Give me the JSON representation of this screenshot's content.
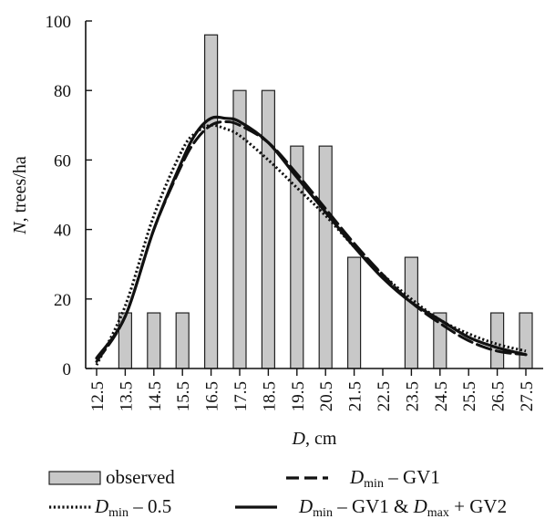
{
  "chart_data": {
    "type": "bar",
    "ylabel": {
      "var": "N",
      "rest": ", trees/ha"
    },
    "xlabel": {
      "var": "D",
      "rest": ", cm"
    },
    "ylim": [
      0,
      100
    ],
    "yticks": [
      "0",
      "20",
      "40",
      "60",
      "80",
      "100"
    ],
    "categories": [
      "12.5",
      "13.5",
      "14.5",
      "15.5",
      "16.5",
      "17.5",
      "18.5",
      "19.5",
      "20.5",
      "21.5",
      "22.5",
      "23.5",
      "24.5",
      "25.5",
      "26.5",
      "27.5"
    ],
    "observed": {
      "name": "observed",
      "x": [
        13.5,
        14.5,
        15.5,
        16.5,
        17.5,
        18.5,
        19.5,
        20.5,
        21.5,
        23.5,
        24.5,
        26.5,
        27.5
      ],
      "values": [
        16,
        16,
        16,
        96,
        80,
        80,
        64,
        64,
        32,
        32,
        16,
        16,
        16
      ]
    },
    "series": [
      {
        "style": "dotted",
        "x": [
          12.5,
          13.5,
          14.5,
          15.5,
          16.0,
          16.5,
          17.0,
          17.5,
          18.5,
          19.5,
          20.5,
          21.5,
          22.5,
          23.5,
          24.5,
          25.5,
          26.5,
          27.5
        ],
        "values": [
          1,
          18,
          44,
          63,
          68,
          70,
          69,
          67,
          60,
          52,
          44,
          35,
          27,
          20,
          14,
          10,
          7,
          5
        ]
      },
      {
        "style": "dashed",
        "x": [
          12.5,
          13.5,
          14.5,
          15.5,
          16.0,
          16.5,
          17.0,
          17.5,
          18.5,
          19.5,
          20.5,
          21.5,
          22.5,
          23.5,
          24.5,
          25.5,
          26.5,
          27.5
        ],
        "values": [
          2,
          15,
          40,
          59,
          66,
          70,
          71,
          70,
          65,
          56,
          46,
          36,
          27,
          19,
          13,
          8,
          5,
          4
        ]
      },
      {
        "style": "solid",
        "x": [
          12.5,
          13.5,
          14.5,
          15.5,
          16.0,
          16.5,
          17.0,
          17.5,
          18.5,
          19.5,
          20.5,
          21.5,
          22.5,
          23.5,
          24.5,
          25.5,
          26.5,
          27.5
        ],
        "values": [
          3,
          15,
          40,
          60,
          68,
          72,
          72,
          71,
          65,
          55,
          45,
          35,
          26,
          19,
          14,
          9,
          6,
          4
        ]
      }
    ],
    "legend": [
      {
        "key": "observed",
        "main": "observed",
        "sub": "",
        "tail": ""
      },
      {
        "key": "dashed",
        "main": "D",
        "sub": "min",
        "tail": " – GV1"
      },
      {
        "key": "dotted",
        "main": "D",
        "sub": "min",
        "tail": " – 0.5"
      },
      {
        "key": "solid",
        "main": "D",
        "sub": "min",
        "tail": " – GV1 & ",
        "main2": "D",
        "sub2": "max",
        "tail2": " + GV2"
      }
    ],
    "colors": {
      "bar_fill": "#c8c8c8",
      "bar_stroke": "#222222",
      "line": "#111111"
    }
  }
}
